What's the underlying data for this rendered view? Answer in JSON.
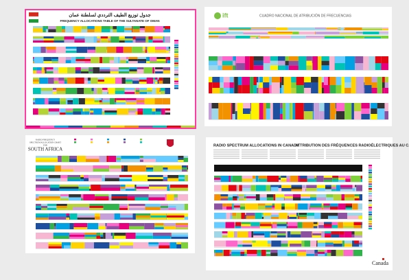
{
  "posters": [
    {
      "title": "جدول توزيع الطيف الترددي لسلطنة عمان",
      "subtitle": "FREQUENCY ALLOCATIONS TABLE OF THE SULTANATE OF OMAN"
    },
    {
      "logo": "ift",
      "title": "CUADRO NACIONAL DE ATRIBUCIÓN DE FRECUENCIAS"
    },
    {
      "title_lines": [
        "RADIO FREQUENCY",
        "SPECTRUM ALLOCATION CHART",
        "FOR",
        "SOUTH AFRICA"
      ]
    },
    {
      "title_en": "RADIO SPECTRUM ALLOCATIONS IN CANADA",
      "title_fr": "ATTRIBUTION DES FRÉQUENCES RADIOÉLECTRIQUES AU CANADA",
      "wordmark": "Canada"
    }
  ]
}
